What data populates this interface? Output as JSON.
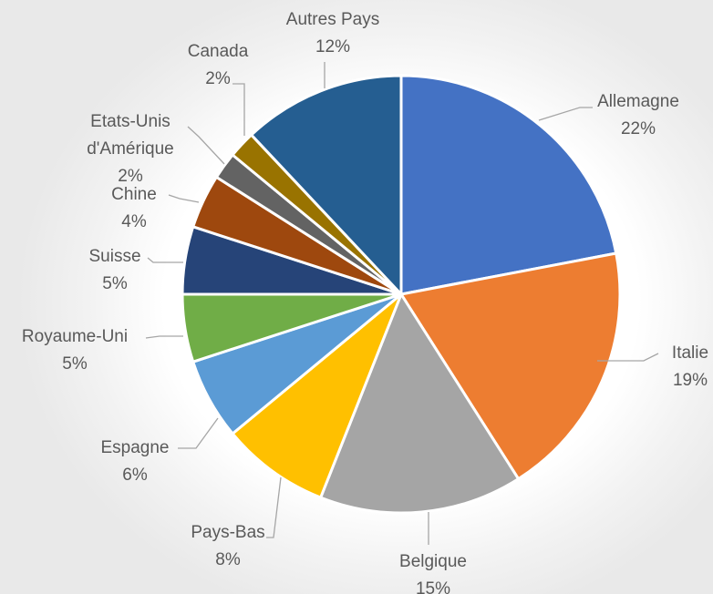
{
  "chart_data": {
    "type": "pie",
    "title": "",
    "legend": "none",
    "slices": [
      {
        "label": "Allemagne",
        "label_lines": [
          "Allemagne"
        ],
        "percent_label": "22%",
        "value": 22,
        "color": "#4472C4"
      },
      {
        "label": "Italie",
        "label_lines": [
          "Italie"
        ],
        "percent_label": "19%",
        "value": 19,
        "color": "#ED7D31"
      },
      {
        "label": "Belgique",
        "label_lines": [
          "Belgique"
        ],
        "percent_label": "15%",
        "value": 15,
        "color": "#A5A5A5"
      },
      {
        "label": "Pays-Bas",
        "label_lines": [
          "Pays-Bas"
        ],
        "percent_label": "8%",
        "value": 8,
        "color": "#FFC000"
      },
      {
        "label": "Espagne",
        "label_lines": [
          "Espagne"
        ],
        "percent_label": "6%",
        "value": 6,
        "color": "#5B9BD5"
      },
      {
        "label": "Royaume-Uni",
        "label_lines": [
          "Royaume-Uni"
        ],
        "percent_label": "5%",
        "value": 5,
        "color": "#70AD47"
      },
      {
        "label": "Suisse",
        "label_lines": [
          "Suisse"
        ],
        "percent_label": "5%",
        "value": 5,
        "color": "#264478"
      },
      {
        "label": "Chine",
        "label_lines": [
          "Chine"
        ],
        "percent_label": "4%",
        "value": 4,
        "color": "#9E480E"
      },
      {
        "label": "Etats-Unis d'Amérique",
        "label_lines": [
          "Etats-Unis",
          "d'Amérique"
        ],
        "percent_label": "2%",
        "value": 2,
        "color": "#636363"
      },
      {
        "label": "Canada",
        "label_lines": [
          "Canada"
        ],
        "percent_label": "2%",
        "value": 2,
        "color": "#997300"
      },
      {
        "label": "Autres Pays",
        "label_lines": [
          "Autres Pays"
        ],
        "percent_label": "12%",
        "value": 12,
        "color": "#255E91"
      }
    ]
  }
}
